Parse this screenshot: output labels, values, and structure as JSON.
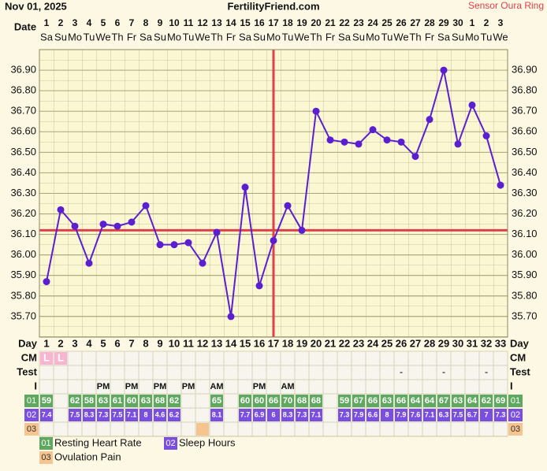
{
  "header": {
    "date": "Nov 01, 2025",
    "site": "FertilityFriend.com",
    "sensor": "Sensor Oura Ring"
  },
  "date_label": "Date",
  "dates": [
    1,
    2,
    3,
    4,
    5,
    6,
    7,
    8,
    9,
    10,
    11,
    12,
    13,
    14,
    15,
    16,
    17,
    18,
    19,
    20,
    21,
    22,
    23,
    24,
    25,
    26,
    27,
    28,
    29,
    30,
    1,
    2,
    3
  ],
  "weekdays": [
    "Sa",
    "Su",
    "Mo",
    "Tu",
    "We",
    "Th",
    "Fr",
    "Sa",
    "Su",
    "Mo",
    "Tu",
    "We",
    "Th",
    "Fr",
    "Sa",
    "Su",
    "Mo",
    "Tu",
    "We",
    "Th",
    "Fr",
    "Sa",
    "Su",
    "Mo",
    "Tu",
    "We",
    "Th",
    "Fr",
    "Sa",
    "Su",
    "Mo",
    "Tu",
    "We"
  ],
  "chart_data": {
    "type": "line",
    "categories": [
      1,
      2,
      3,
      4,
      5,
      6,
      7,
      8,
      9,
      10,
      11,
      12,
      13,
      14,
      15,
      16,
      17,
      18,
      19,
      20,
      21,
      22,
      23,
      24,
      25,
      26,
      27,
      28,
      29,
      30,
      31,
      32,
      33
    ],
    "values": [
      35.87,
      36.22,
      36.14,
      35.96,
      36.15,
      36.14,
      36.16,
      36.24,
      36.05,
      36.05,
      36.06,
      35.96,
      36.11,
      35.7,
      36.33,
      35.85,
      36.07,
      36.24,
      36.12,
      36.7,
      36.56,
      36.55,
      36.54,
      36.61,
      36.56,
      36.55,
      36.48,
      36.66,
      36.9,
      36.54,
      36.73,
      36.58,
      36.34
    ],
    "color": "#5a1fd1",
    "ylim": [
      35.6,
      37.0
    ],
    "yticks": [
      {
        "value": 35.7,
        "label": "35.70"
      },
      {
        "value": 35.8,
        "label": "35.80"
      },
      {
        "value": 35.9,
        "label": "35.90"
      },
      {
        "value": 36.0,
        "label": "36.00"
      },
      {
        "value": 36.1,
        "label": "36.10"
      },
      {
        "value": 36.2,
        "label": "36.20"
      },
      {
        "value": 36.3,
        "label": "36.30"
      },
      {
        "value": 36.4,
        "label": "36.40"
      },
      {
        "value": 36.5,
        "label": "36.50"
      },
      {
        "value": 36.6,
        "label": "36.60"
      },
      {
        "value": 36.7,
        "label": "36.70"
      },
      {
        "value": 36.8,
        "label": "36.80"
      },
      {
        "value": 36.9,
        "label": "36.90"
      }
    ],
    "coverline": 36.12,
    "ovulation_day": 17,
    "marker_line_color": "#e0404a",
    "grid": true
  },
  "table": {
    "row_labels": [
      "Day",
      "CM",
      "Test",
      "I"
    ],
    "cm": [
      "L",
      "L",
      null,
      null,
      null,
      null,
      null,
      null,
      null,
      null,
      null,
      null,
      null,
      null,
      null,
      null,
      null,
      null,
      null,
      null,
      null,
      null,
      null,
      null,
      null,
      null,
      null,
      null,
      null,
      null,
      null,
      null,
      null
    ],
    "test": [
      null,
      null,
      null,
      null,
      null,
      null,
      null,
      null,
      null,
      null,
      null,
      null,
      null,
      null,
      null,
      null,
      null,
      null,
      null,
      null,
      null,
      null,
      null,
      null,
      null,
      "-",
      null,
      null,
      "-",
      null,
      null,
      "-",
      null
    ],
    "intercourse": [
      null,
      null,
      null,
      null,
      "PM",
      null,
      "PM",
      null,
      "PM",
      null,
      "PM",
      null,
      "AM",
      null,
      null,
      "PM",
      null,
      "AM",
      null,
      null,
      null,
      null,
      null,
      null,
      null,
      null,
      null,
      null,
      null,
      null,
      null,
      null,
      null
    ],
    "heart_rate": [
      59,
      null,
      62,
      58,
      63,
      61,
      60,
      63,
      68,
      62,
      null,
      null,
      65,
      null,
      60,
      60,
      66,
      70,
      68,
      68,
      null,
      59,
      67,
      66,
      63,
      66,
      64,
      64,
      67,
      63,
      64,
      62,
      69
    ],
    "sleep": [
      7.4,
      null,
      7.5,
      8.3,
      7.3,
      7.5,
      7.1,
      8.0,
      4.6,
      6.2,
      null,
      null,
      8.1,
      null,
      7.7,
      6.9,
      6.0,
      8.3,
      7.3,
      7.1,
      null,
      7.3,
      7.9,
      6.6,
      8.0,
      7.9,
      7.6,
      7.1,
      6.3,
      7.5,
      6.7,
      7.0,
      7.3
    ],
    "ovulation_pain_days": [
      12
    ]
  },
  "legend": [
    {
      "code": "01",
      "label": "Resting Heart Rate",
      "color": "#5fa85f"
    },
    {
      "code": "02",
      "label": "Sleep Hours",
      "color": "#7a4fe0"
    },
    {
      "code": "03",
      "label": "Ovulation Pain",
      "color": "#f6c48e"
    }
  ]
}
